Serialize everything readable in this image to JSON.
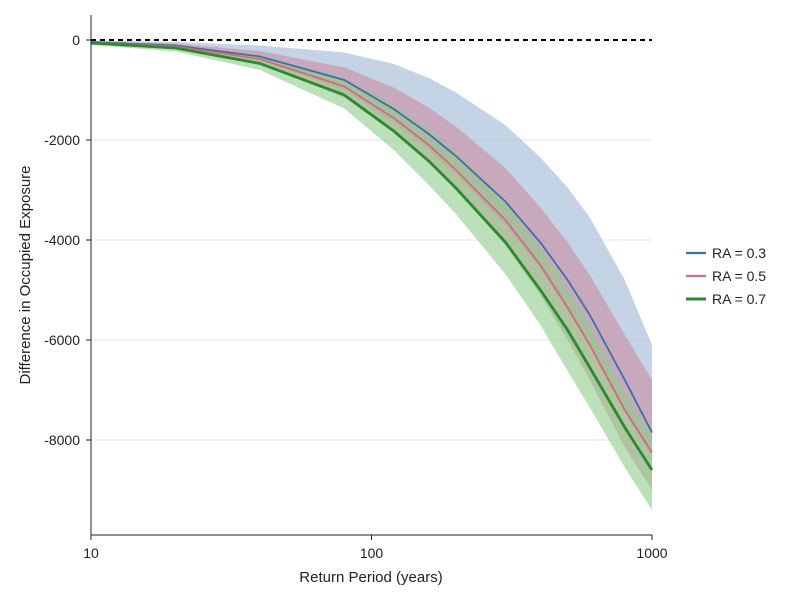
{
  "chart_data": {
    "type": "line",
    "title": "",
    "xlabel": "Return Period (years)",
    "ylabel": "Difference in Occupied Exposure",
    "x_scale": "log",
    "xlim": [
      10,
      1000
    ],
    "ylim": [
      -9900,
      500
    ],
    "x_ticks": [
      10,
      100,
      1000
    ],
    "x_tick_labels": [
      "10",
      "100",
      "1000"
    ],
    "y_ticks": [
      0,
      -2000,
      -4000,
      -6000,
      -8000
    ],
    "y_tick_labels": [
      "0",
      "-2000",
      "-4000",
      "-6000",
      "-8000"
    ],
    "grid": "horizontal",
    "reference_line": {
      "y": 0,
      "style": "dashed",
      "color": "#000000"
    },
    "legend_position": "right",
    "x": [
      10,
      20,
      40,
      80,
      120,
      160,
      200,
      300,
      400,
      500,
      600,
      800,
      1000
    ],
    "series": [
      {
        "name": "RA = 0.3",
        "color": "#3a6faa",
        "band_color": "#9db5d6",
        "values": [
          -40,
          -110,
          -330,
          -800,
          -1380,
          -1880,
          -2320,
          -3230,
          -4050,
          -4800,
          -5500,
          -6800,
          -7850
        ],
        "lower": [
          -60,
          -140,
          -420,
          -1000,
          -1650,
          -2200,
          -2700,
          -3700,
          -4600,
          -5400,
          -6150,
          -7450,
          -8350
        ],
        "upper": [
          -10,
          -40,
          -110,
          -250,
          -480,
          -760,
          -1050,
          -1700,
          -2350,
          -2950,
          -3550,
          -4800,
          -6100
        ]
      },
      {
        "name": "RA = 0.5",
        "color": "#d9687a",
        "band_color": "#cc8ca0",
        "values": [
          -50,
          -130,
          -380,
          -930,
          -1560,
          -2100,
          -2600,
          -3600,
          -4500,
          -5350,
          -6100,
          -7400,
          -8250
        ],
        "lower": [
          -80,
          -180,
          -480,
          -1150,
          -1850,
          -2450,
          -3000,
          -4100,
          -5100,
          -6000,
          -6800,
          -8150,
          -9000
        ],
        "upper": [
          -20,
          -70,
          -220,
          -550,
          -950,
          -1350,
          -1730,
          -2560,
          -3350,
          -4050,
          -4700,
          -5900,
          -6800
        ]
      },
      {
        "name": "RA = 0.7",
        "color": "#2b8a2f",
        "band_color": "#8fcc8a",
        "values": [
          -60,
          -160,
          -470,
          -1100,
          -1820,
          -2420,
          -2960,
          -4040,
          -5000,
          -5800,
          -6550,
          -7750,
          -8600
        ],
        "lower": [
          -100,
          -230,
          -600,
          -1370,
          -2200,
          -2900,
          -3480,
          -4680,
          -5700,
          -6620,
          -7350,
          -8550,
          -9400
        ],
        "upper": [
          -30,
          -100,
          -300,
          -760,
          -1300,
          -1800,
          -2250,
          -3250,
          -4150,
          -4960,
          -5700,
          -7050,
          -7900
        ]
      }
    ]
  }
}
